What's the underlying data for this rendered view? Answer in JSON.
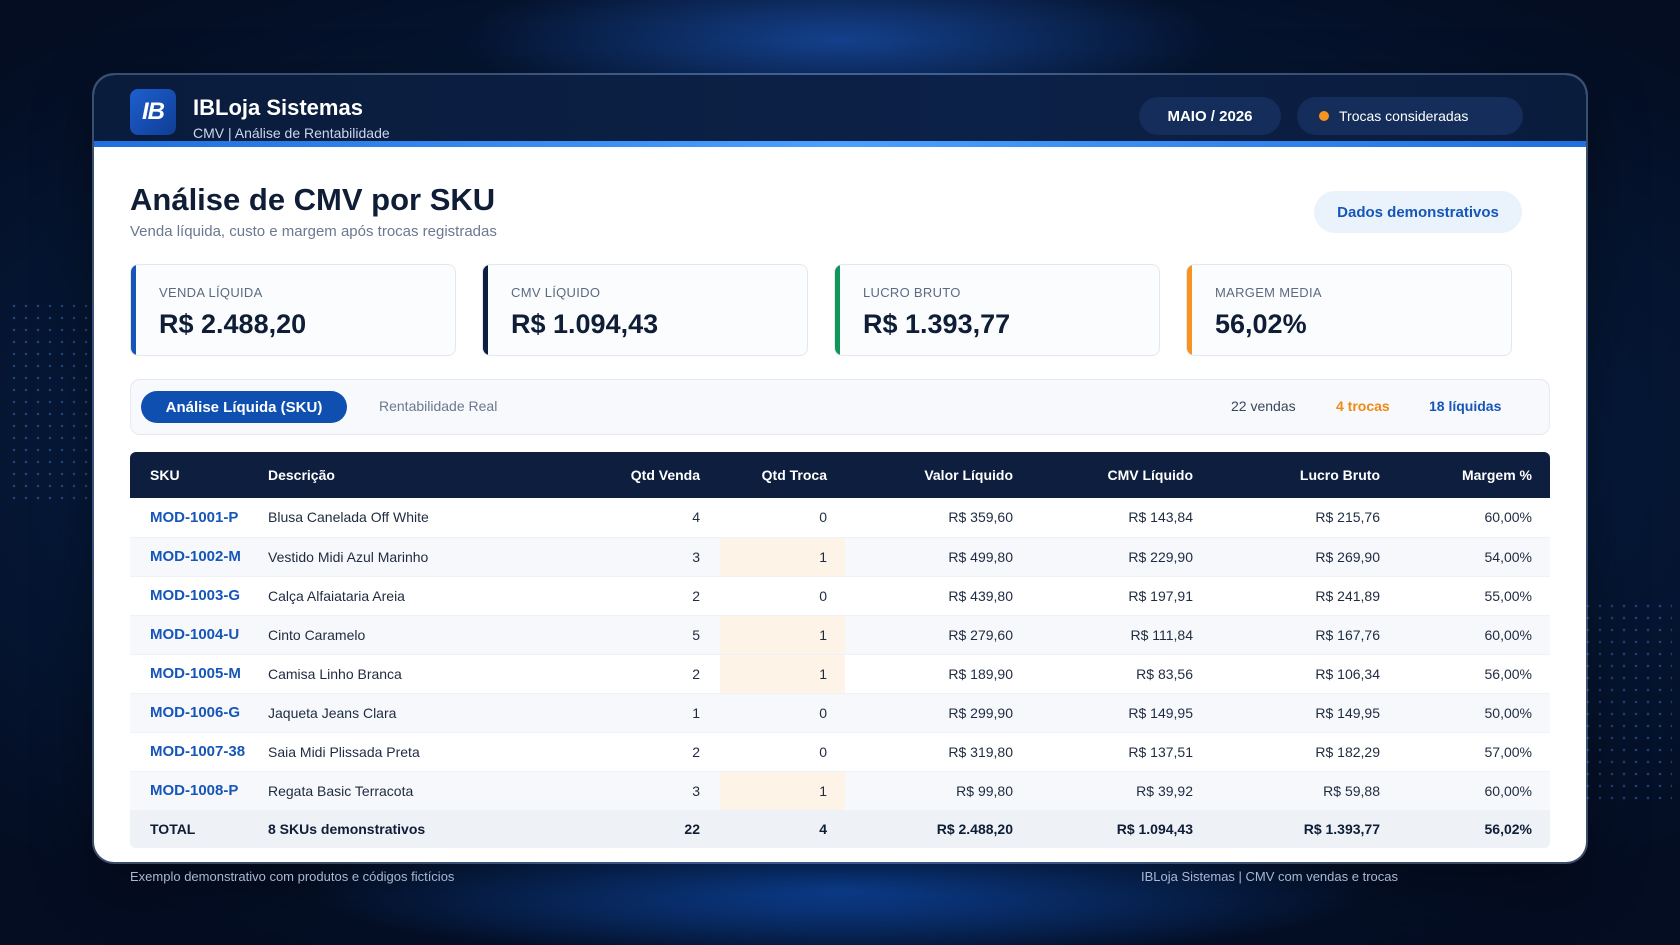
{
  "header": {
    "logo_text": "IB",
    "brand_name": "IBLoja Sistemas",
    "brand_sub": "CMV | Análise de Rentabilidade",
    "month_pill": "MAIO / 2026",
    "trocas_pill": "Trocas consideradas"
  },
  "page": {
    "title": "Análise de CMV por SKU",
    "subtitle": "Venda líquida, custo e margem após trocas registradas",
    "demo_badge": "Dados demonstrativos"
  },
  "kpis": [
    {
      "label": "VENDA LÍQUIDA",
      "value": "R$ 2.488,20",
      "color": "#1556b8"
    },
    {
      "label": "CMV LÍQUIDO",
      "value": "R$ 1.094,43",
      "color": "#0d1e3f"
    },
    {
      "label": "LUCRO BRUTO",
      "value": "R$ 1.393,77",
      "color": "#12955a"
    },
    {
      "label": "MARGEM MEDIA",
      "value": "56,02%",
      "color": "#f7931e"
    }
  ],
  "tabs": {
    "active": "Análise Líquida (SKU)",
    "inactive": "Rentabilidade Real",
    "vendas": "22 vendas",
    "trocas": "4 trocas",
    "liquidas": "18 líquidas"
  },
  "table": {
    "headers": [
      "SKU",
      "Descrição",
      "Qtd Venda",
      "Qtd Troca",
      "Valor Líquido",
      "CMV Líquido",
      "Lucro Bruto",
      "Margem %"
    ],
    "rows": [
      [
        "MOD-1001-P",
        "Blusa Canelada Off White",
        "4",
        "0",
        "R$ 359,60",
        "R$ 143,84",
        "R$ 215,76",
        "60,00%"
      ],
      [
        "MOD-1002-M",
        "Vestido Midi Azul Marinho",
        "3",
        "1",
        "R$ 499,80",
        "R$ 229,90",
        "R$ 269,90",
        "54,00%"
      ],
      [
        "MOD-1003-G",
        "Calça Alfaiataria Areia",
        "2",
        "0",
        "R$ 439,80",
        "R$ 197,91",
        "R$ 241,89",
        "55,00%"
      ],
      [
        "MOD-1004-U",
        "Cinto Caramelo",
        "5",
        "1",
        "R$ 279,60",
        "R$ 111,84",
        "R$ 167,76",
        "60,00%"
      ],
      [
        "MOD-1005-M",
        "Camisa Linho Branca",
        "2",
        "1",
        "R$ 189,90",
        "R$ 83,56",
        "R$ 106,34",
        "56,00%"
      ],
      [
        "MOD-1006-G",
        "Jaqueta Jeans Clara",
        "1",
        "0",
        "R$ 299,90",
        "R$ 149,95",
        "R$ 149,95",
        "50,00%"
      ],
      [
        "MOD-1007-38",
        "Saia Midi Plissada Preta",
        "2",
        "0",
        "R$ 319,80",
        "R$ 137,51",
        "R$ 182,29",
        "57,00%"
      ],
      [
        "MOD-1008-P",
        "Regata Basic Terracota",
        "3",
        "1",
        "R$ 99,80",
        "R$ 39,92",
        "R$ 59,88",
        "60,00%"
      ]
    ],
    "total": [
      "TOTAL",
      "8 SKUs demonstrativos",
      "22",
      "4",
      "R$ 2.488,20",
      "R$ 1.094,43",
      "R$ 1.393,77",
      "56,02%"
    ]
  },
  "footer": {
    "left": "Exemplo demonstrativo com produtos e códigos fictícios",
    "right": "IBLoja Sistemas | CMV com vendas e trocas"
  }
}
